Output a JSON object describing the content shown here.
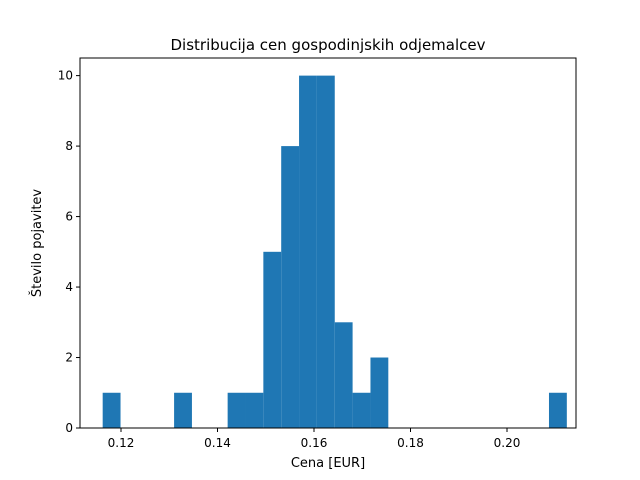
{
  "chart_data": {
    "type": "bar",
    "title": "Distribucija cen gospodinjskih odjemalcev",
    "xlabel": "Cena [EUR]",
    "ylabel": "Število pojavitev",
    "xlim": [
      0.1115,
      0.2143
    ],
    "ylim": [
      0,
      10.5
    ],
    "xticks": [
      0.12,
      0.14,
      0.16,
      0.18,
      0.2
    ],
    "xtick_labels": [
      "0.12",
      "0.14",
      "0.16",
      "0.18",
      "0.20"
    ],
    "yticks": [
      0,
      2,
      4,
      6,
      8,
      10
    ],
    "ytick_labels": [
      "0",
      "2",
      "4",
      "6",
      "8",
      "10"
    ],
    "bin_start": 0.1162,
    "bin_width": 0.0037,
    "counts": [
      1,
      0,
      0,
      0,
      1,
      0,
      0,
      1,
      1,
      5,
      8,
      10,
      10,
      3,
      1,
      2,
      0,
      0,
      0,
      0,
      0,
      0,
      0,
      0,
      0,
      1
    ],
    "bar_color": "#1f77b4",
    "grid": false
  }
}
